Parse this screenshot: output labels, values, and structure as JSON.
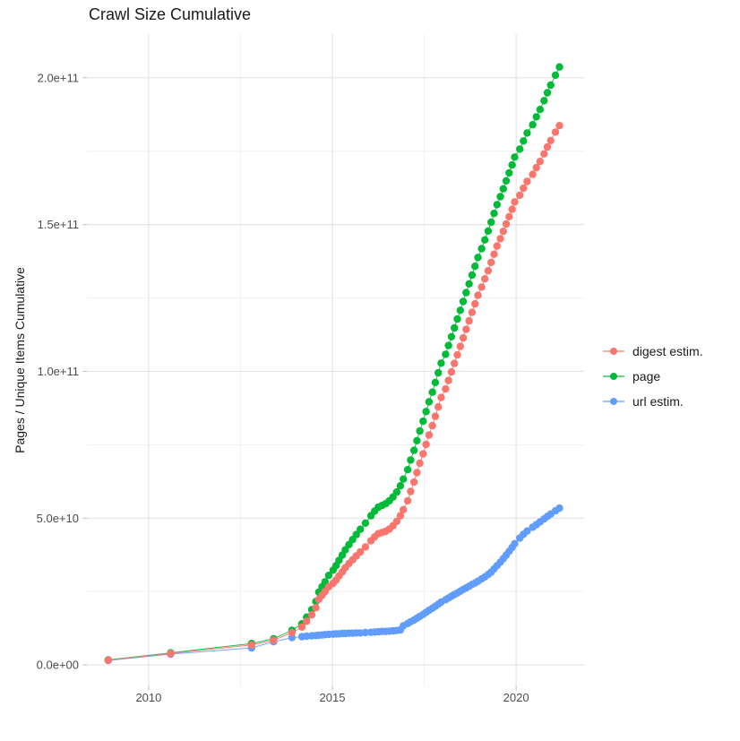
{
  "title": "Crawl Size Cumulative",
  "y_axis_title": "Pages / Unique Items Cumulative",
  "colors": {
    "background": "#FFFFFF",
    "grid_major": "#E4E4E4",
    "grid_minor": "#F1F1F1",
    "tick_mark": "#BBBBBB",
    "tick_label": "#4D4D4D",
    "text": "#1A1A1A"
  },
  "x_axis": {
    "range": [
      2008.32,
      2021.85
    ],
    "ticks": [
      {
        "value": 2010,
        "label": "2010"
      },
      {
        "value": 2015,
        "label": "2015"
      },
      {
        "value": 2020,
        "label": "2020"
      }
    ],
    "minor": [
      2012.5,
      2017.5
    ]
  },
  "y_axis": {
    "range_billions": [
      -7.3,
      214.9
    ],
    "ticks": [
      {
        "value": 0,
        "label": "0.0e+00"
      },
      {
        "value": 50,
        "label": "5.0e+10"
      },
      {
        "value": 100,
        "label": "1.0e+11"
      },
      {
        "value": 150,
        "label": "1.5e+11"
      },
      {
        "value": 200,
        "label": "2.0e+11"
      }
    ],
    "minor": [
      25,
      75,
      125,
      175
    ]
  },
  "chart_data": {
    "type": "line",
    "subtype": "scatter-line cumulative",
    "title": "Crawl Size Cumulative",
    "xlabel": "",
    "ylabel": "Pages / Unique Items Cumulative",
    "x_unit": "decimal year (crawl date)",
    "y_unit": "billions of pages / unique items (value x 1e9)",
    "xlim": [
      2008.32,
      2021.85
    ],
    "ylim_billions": [
      -7.3,
      214.9
    ],
    "grid": true,
    "legend_position": "right",
    "point_radius_px": 4.2,
    "series": [
      {
        "name": "digest estim.",
        "color": "#F8766D",
        "z": 3,
        "points": [
          [
            2008.9,
            1.6
          ],
          [
            2010.6,
            3.9
          ],
          [
            2012.8,
            6.8
          ],
          [
            2013.4,
            8.4
          ],
          [
            2013.9,
            11.0
          ],
          [
            2014.17,
            12.9
          ],
          [
            2014.3,
            14.9
          ],
          [
            2014.44,
            17.1
          ],
          [
            2014.55,
            19.5
          ],
          [
            2014.63,
            22.3
          ],
          [
            2014.72,
            23.7
          ],
          [
            2014.8,
            25.0
          ],
          [
            2014.9,
            26.6
          ],
          [
            2015.02,
            27.8
          ],
          [
            2015.1,
            28.9
          ],
          [
            2015.18,
            30.3
          ],
          [
            2015.27,
            31.7
          ],
          [
            2015.35,
            33.1
          ],
          [
            2015.45,
            34.5
          ],
          [
            2015.55,
            35.8
          ],
          [
            2015.65,
            37.1
          ],
          [
            2015.76,
            38.5
          ],
          [
            2015.9,
            40.2
          ],
          [
            2016.05,
            42.3
          ],
          [
            2016.15,
            43.6
          ],
          [
            2016.25,
            44.7
          ],
          [
            2016.35,
            45.1
          ],
          [
            2016.45,
            45.5
          ],
          [
            2016.55,
            46.3
          ],
          [
            2016.65,
            47.4
          ],
          [
            2016.75,
            48.9
          ],
          [
            2016.85,
            50.8
          ],
          [
            2016.93,
            52.9
          ],
          [
            2017.05,
            55.9
          ],
          [
            2017.13,
            59.1
          ],
          [
            2017.22,
            62.3
          ],
          [
            2017.3,
            65.5
          ],
          [
            2017.38,
            68.7
          ],
          [
            2017.47,
            71.9
          ],
          [
            2017.55,
            75.1
          ],
          [
            2017.63,
            78.3
          ],
          [
            2017.72,
            81.5
          ],
          [
            2017.8,
            84.7
          ],
          [
            2017.88,
            87.9
          ],
          [
            2017.96,
            91.1
          ],
          [
            2018.08,
            94.0
          ],
          [
            2018.16,
            96.9
          ],
          [
            2018.24,
            99.8
          ],
          [
            2018.32,
            102.7
          ],
          [
            2018.4,
            105.6
          ],
          [
            2018.48,
            108.5
          ],
          [
            2018.56,
            111.4
          ],
          [
            2018.64,
            114.3
          ],
          [
            2018.72,
            117.2
          ],
          [
            2018.8,
            120.1
          ],
          [
            2018.88,
            123.0
          ],
          [
            2018.96,
            125.9
          ],
          [
            2019.06,
            128.7
          ],
          [
            2019.15,
            131.5
          ],
          [
            2019.24,
            134.3
          ],
          [
            2019.32,
            137.1
          ],
          [
            2019.4,
            139.9
          ],
          [
            2019.48,
            142.7
          ],
          [
            2019.57,
            145.2
          ],
          [
            2019.65,
            147.7
          ],
          [
            2019.73,
            150.2
          ],
          [
            2019.81,
            152.7
          ],
          [
            2019.89,
            155.2
          ],
          [
            2019.96,
            157.7
          ],
          [
            2020.1,
            160.0
          ],
          [
            2020.2,
            162.4
          ],
          [
            2020.3,
            164.7
          ],
          [
            2020.45,
            167.1
          ],
          [
            2020.55,
            169.4
          ],
          [
            2020.65,
            171.5
          ],
          [
            2020.76,
            174.1
          ],
          [
            2020.85,
            176.4
          ],
          [
            2020.94,
            178.6
          ],
          [
            2021.07,
            181.5
          ],
          [
            2021.18,
            183.7
          ]
        ]
      },
      {
        "name": "page",
        "color": "#00BA38",
        "z": 2,
        "points": [
          [
            2008.9,
            1.7
          ],
          [
            2010.6,
            4.1
          ],
          [
            2012.8,
            7.3
          ],
          [
            2013.4,
            8.9
          ],
          [
            2013.9,
            11.8
          ],
          [
            2014.17,
            14.0
          ],
          [
            2014.3,
            16.3
          ],
          [
            2014.44,
            18.8
          ],
          [
            2014.55,
            21.6
          ],
          [
            2014.63,
            24.8
          ],
          [
            2014.72,
            26.6
          ],
          [
            2014.8,
            28.3
          ],
          [
            2014.9,
            30.5
          ],
          [
            2015.02,
            32.3
          ],
          [
            2015.1,
            33.8
          ],
          [
            2015.18,
            35.6
          ],
          [
            2015.27,
            37.4
          ],
          [
            2015.35,
            39.2
          ],
          [
            2015.45,
            41.0
          ],
          [
            2015.55,
            42.7
          ],
          [
            2015.65,
            44.4
          ],
          [
            2015.76,
            46.2
          ],
          [
            2015.9,
            48.3
          ],
          [
            2016.05,
            50.8
          ],
          [
            2016.15,
            52.4
          ],
          [
            2016.25,
            53.7
          ],
          [
            2016.35,
            54.3
          ],
          [
            2016.45,
            54.9
          ],
          [
            2016.55,
            55.9
          ],
          [
            2016.65,
            57.2
          ],
          [
            2016.75,
            58.9
          ],
          [
            2016.85,
            61.0
          ],
          [
            2016.93,
            63.3
          ],
          [
            2017.05,
            66.5
          ],
          [
            2017.13,
            69.8
          ],
          [
            2017.22,
            73.1
          ],
          [
            2017.3,
            76.4
          ],
          [
            2017.38,
            79.7
          ],
          [
            2017.47,
            83.0
          ],
          [
            2017.55,
            86.3
          ],
          [
            2017.63,
            89.6
          ],
          [
            2017.72,
            92.9
          ],
          [
            2017.8,
            96.2
          ],
          [
            2017.88,
            99.5
          ],
          [
            2017.96,
            102.8
          ],
          [
            2018.08,
            105.8
          ],
          [
            2018.16,
            108.8
          ],
          [
            2018.24,
            111.8
          ],
          [
            2018.32,
            114.8
          ],
          [
            2018.4,
            117.8
          ],
          [
            2018.48,
            120.8
          ],
          [
            2018.56,
            123.8
          ],
          [
            2018.64,
            126.8
          ],
          [
            2018.72,
            129.8
          ],
          [
            2018.8,
            132.8
          ],
          [
            2018.88,
            135.8
          ],
          [
            2018.96,
            138.8
          ],
          [
            2019.06,
            141.8
          ],
          [
            2019.15,
            144.8
          ],
          [
            2019.24,
            147.8
          ],
          [
            2019.32,
            150.8
          ],
          [
            2019.4,
            153.8
          ],
          [
            2019.48,
            156.8
          ],
          [
            2019.57,
            159.5
          ],
          [
            2019.65,
            162.2
          ],
          [
            2019.73,
            164.9
          ],
          [
            2019.81,
            167.6
          ],
          [
            2019.89,
            170.3
          ],
          [
            2019.96,
            173.0
          ],
          [
            2020.1,
            175.7
          ],
          [
            2020.2,
            178.5
          ],
          [
            2020.3,
            181.2
          ],
          [
            2020.45,
            184.0
          ],
          [
            2020.55,
            186.7
          ],
          [
            2020.65,
            189.2
          ],
          [
            2020.76,
            192.2
          ],
          [
            2020.85,
            194.9
          ],
          [
            2020.94,
            197.5
          ],
          [
            2021.07,
            200.9
          ],
          [
            2021.18,
            203.7
          ]
        ]
      },
      {
        "name": "url estim.",
        "color": "#619CFF",
        "z": 1,
        "points": [
          [
            2008.9,
            1.5
          ],
          [
            2010.6,
            3.7
          ],
          [
            2012.8,
            5.8
          ],
          [
            2013.4,
            7.9
          ],
          [
            2013.9,
            9.3
          ],
          [
            2014.17,
            9.6
          ],
          [
            2014.3,
            9.8
          ],
          [
            2014.44,
            9.9
          ],
          [
            2014.55,
            10.0
          ],
          [
            2014.63,
            10.1
          ],
          [
            2014.72,
            10.2
          ],
          [
            2014.8,
            10.3
          ],
          [
            2014.9,
            10.4
          ],
          [
            2015.02,
            10.5
          ],
          [
            2015.1,
            10.6
          ],
          [
            2015.18,
            10.6
          ],
          [
            2015.27,
            10.7
          ],
          [
            2015.35,
            10.7
          ],
          [
            2015.45,
            10.8
          ],
          [
            2015.55,
            10.8
          ],
          [
            2015.65,
            10.9
          ],
          [
            2015.76,
            10.9
          ],
          [
            2015.9,
            11.0
          ],
          [
            2016.05,
            11.1
          ],
          [
            2016.15,
            11.2
          ],
          [
            2016.25,
            11.3
          ],
          [
            2016.35,
            11.4
          ],
          [
            2016.45,
            11.4
          ],
          [
            2016.55,
            11.5
          ],
          [
            2016.65,
            11.6
          ],
          [
            2016.75,
            11.7
          ],
          [
            2016.85,
            11.9
          ],
          [
            2016.93,
            13.3
          ],
          [
            2017.05,
            14.1
          ],
          [
            2017.13,
            14.7
          ],
          [
            2017.22,
            15.3
          ],
          [
            2017.3,
            15.9
          ],
          [
            2017.38,
            16.5
          ],
          [
            2017.47,
            17.2
          ],
          [
            2017.55,
            17.9
          ],
          [
            2017.63,
            18.6
          ],
          [
            2017.72,
            19.3
          ],
          [
            2017.8,
            20.0
          ],
          [
            2017.88,
            20.7
          ],
          [
            2017.96,
            21.4
          ],
          [
            2018.08,
            22.2
          ],
          [
            2018.16,
            22.8
          ],
          [
            2018.24,
            23.4
          ],
          [
            2018.32,
            24.0
          ],
          [
            2018.4,
            24.5
          ],
          [
            2018.48,
            25.1
          ],
          [
            2018.56,
            25.7
          ],
          [
            2018.64,
            26.2
          ],
          [
            2018.72,
            26.8
          ],
          [
            2018.8,
            27.4
          ],
          [
            2018.88,
            27.9
          ],
          [
            2018.96,
            28.5
          ],
          [
            2019.06,
            29.3
          ],
          [
            2019.15,
            30.0
          ],
          [
            2019.24,
            30.8
          ],
          [
            2019.32,
            31.6
          ],
          [
            2019.4,
            32.7
          ],
          [
            2019.48,
            33.8
          ],
          [
            2019.57,
            35.0
          ],
          [
            2019.65,
            36.2
          ],
          [
            2019.73,
            37.4
          ],
          [
            2019.81,
            38.7
          ],
          [
            2019.89,
            40.0
          ],
          [
            2019.96,
            41.3
          ],
          [
            2020.1,
            43.2
          ],
          [
            2020.2,
            44.5
          ],
          [
            2020.3,
            45.6
          ],
          [
            2020.45,
            46.9
          ],
          [
            2020.55,
            47.8
          ],
          [
            2020.65,
            48.7
          ],
          [
            2020.76,
            49.7
          ],
          [
            2020.85,
            50.6
          ],
          [
            2020.94,
            51.4
          ],
          [
            2021.07,
            52.5
          ],
          [
            2021.18,
            53.4
          ]
        ]
      }
    ]
  }
}
